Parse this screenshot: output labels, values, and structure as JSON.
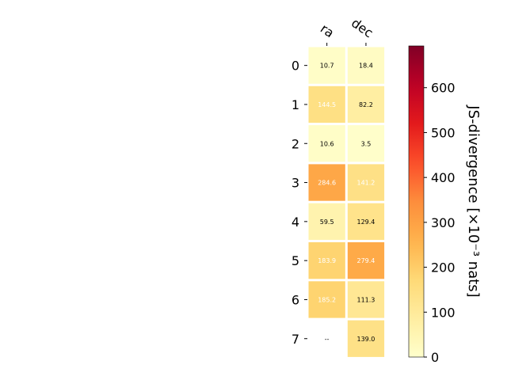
{
  "chart_data": {
    "type": "heatmap",
    "columns": [
      "ra",
      "dec"
    ],
    "rows": [
      "0",
      "1",
      "2",
      "3",
      "4",
      "5",
      "6",
      "7"
    ],
    "values": [
      [
        10.7,
        18.4
      ],
      [
        144.5,
        82.2
      ],
      [
        10.6,
        3.5
      ],
      [
        284.6,
        141.2
      ],
      [
        59.5,
        129.4
      ],
      [
        183.9,
        279.4
      ],
      [
        185.2,
        111.3
      ],
      [
        null,
        139.0
      ]
    ],
    "cell_labels": [
      [
        "10.7",
        "18.4"
      ],
      [
        "144.5",
        "82.2"
      ],
      [
        "10.6",
        "3.5"
      ],
      [
        "284.6",
        "141.2"
      ],
      [
        "59.5",
        "129.4"
      ],
      [
        "183.9",
        "279.4"
      ],
      [
        "185.2",
        "111.3"
      ],
      [
        "--",
        "139.0"
      ]
    ],
    "colorbar": {
      "label": "JS-divergence [×10⁻³ nats]",
      "range": [
        0,
        693
      ],
      "ticks": [
        0,
        100,
        200,
        300,
        400,
        500,
        600
      ],
      "colormap": "YlOrRd"
    }
  }
}
